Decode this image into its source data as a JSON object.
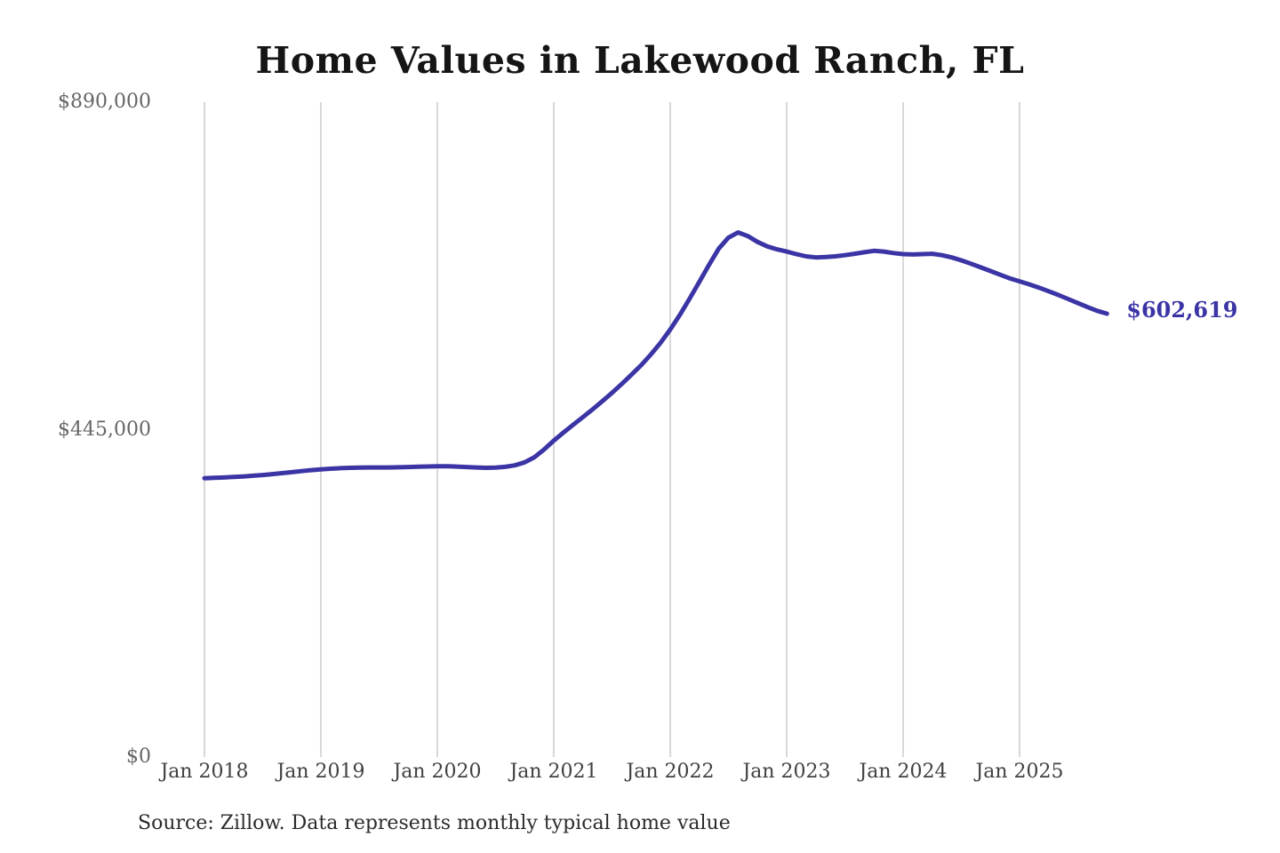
{
  "chart_data": {
    "type": "line",
    "title": "Home Values in Lakewood Ranch, FL",
    "series_name": "Monthly typical home value",
    "x_start": "2018-01",
    "x_end": "2025-10",
    "frequency": "monthly",
    "values": [
      379000,
      379400,
      379900,
      380600,
      381400,
      382300,
      383300,
      384500,
      385800,
      387200,
      388600,
      389900,
      391000,
      391900,
      392600,
      393100,
      393400,
      393500,
      393500,
      393600,
      393800,
      394100,
      394500,
      394900,
      395300,
      395200,
      394800,
      394200,
      393500,
      393100,
      393300,
      394400,
      396500,
      400600,
      407500,
      418000,
      430000,
      441000,
      451500,
      462000,
      472500,
      483500,
      495000,
      507000,
      519500,
      532500,
      547000,
      563000,
      581000,
      601000,
      623000,
      646000,
      669000,
      691000,
      706000,
      713000,
      708000,
      700000,
      694000,
      690000,
      687000,
      683500,
      680500,
      679000,
      679500,
      680500,
      682000,
      684000,
      686000,
      688000,
      687000,
      685000,
      683500,
      683000,
      683500,
      684000,
      682000,
      679000,
      675000,
      670500,
      665500,
      660500,
      655500,
      650500,
      646500,
      642500,
      638000,
      633000,
      628000,
      622500,
      617000,
      611500,
      606500,
      602619
    ],
    "x_ticks": [
      "Jan 2018",
      "Jan 2019",
      "Jan 2020",
      "Jan 2021",
      "Jan 2022",
      "Jan 2023",
      "Jan 2024",
      "Jan 2025"
    ],
    "y_ticks": [
      {
        "label": "$0",
        "value": 0
      },
      {
        "label": "$445,000",
        "value": 445000
      },
      {
        "label": "$890,000",
        "value": 890000
      }
    ],
    "ylim": [
      0,
      890000
    ],
    "xlabel": "",
    "ylabel": "",
    "grid": "vertical-only",
    "legend": "none",
    "end_label": "$602,619",
    "latest_value": 602619
  },
  "source_note": "Source: Zillow. Data represents monthly typical home value",
  "colors": {
    "line": "#3b34a5",
    "end_label": "#3b34a5",
    "title": "#151515",
    "y_tick_text": "#666666",
    "x_tick_text": "#414141",
    "source_text": "#2b2b2b",
    "gridline": "#cccccc",
    "background": "#ffffff"
  }
}
